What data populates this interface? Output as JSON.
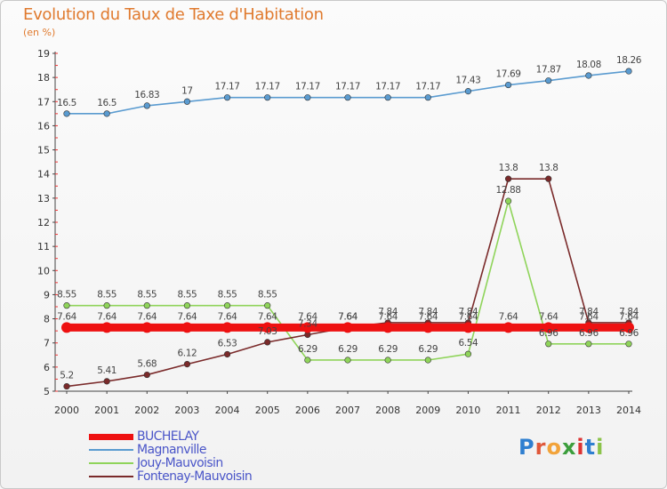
{
  "header": {
    "title": "Evolution du Taux de Taxe d'Habitation",
    "subtitle": "(en %)"
  },
  "logo": {
    "letters": [
      "P",
      "r",
      "o",
      "x",
      "i",
      "t",
      "i"
    ],
    "colors": [
      "#2f7fd0",
      "#e0583a",
      "#f2a33a",
      "#3c9e3c",
      "#d33",
      "#2f7fd0",
      "#8bc34a"
    ]
  },
  "chart_data": {
    "type": "line",
    "title": "Evolution du Taux de Taxe d'Habitation",
    "subtitle": "(en %)",
    "xlabel": "",
    "ylabel": "",
    "x": [
      "2000",
      "2001",
      "2002",
      "2003",
      "2004",
      "2005",
      "2006",
      "2007",
      "2008",
      "2009",
      "2010",
      "2011",
      "2012",
      "2013",
      "2014"
    ],
    "yticks": [
      "5",
      "6",
      "7",
      "8",
      "9",
      "10",
      "11",
      "12",
      "13",
      "14",
      "15",
      "16",
      "17",
      "18",
      "19"
    ],
    "ylim": [
      5,
      19
    ],
    "grid": false,
    "legend_position": "bottom-left",
    "series": [
      {
        "name": "BUCHELAY",
        "color": "#ee1111",
        "values": [
          7.64,
          7.64,
          7.64,
          7.64,
          7.64,
          7.64,
          7.64,
          7.64,
          7.64,
          7.64,
          7.64,
          7.64,
          7.64,
          7.64,
          7.64
        ],
        "labels": [
          "7.64",
          "7.64",
          "7.64",
          "7.64",
          "7.64",
          "7.64",
          "7.64",
          "7.64",
          "7.64",
          "7.64",
          "7.64",
          "7.64",
          "7.64",
          "7.64",
          "7.64"
        ]
      },
      {
        "name": "Magnanville",
        "color": "#5a9bd0",
        "values": [
          16.5,
          16.5,
          16.83,
          17,
          17.17,
          17.17,
          17.17,
          17.17,
          17.17,
          17.17,
          17.43,
          17.69,
          17.87,
          18.08,
          18.26
        ],
        "labels": [
          "16.5",
          "16.5",
          "16.83",
          "17",
          "17.17",
          "17.17",
          "17.17",
          "17.17",
          "17.17",
          "17.17",
          "17.43",
          "17.69",
          "17.87",
          "18.08",
          "18.26"
        ]
      },
      {
        "name": "Jouy-Mauvoisin",
        "color": "#8fd45a",
        "values": [
          8.55,
          8.55,
          8.55,
          8.55,
          8.55,
          8.55,
          6.29,
          6.29,
          6.29,
          6.29,
          6.54,
          12.88,
          6.96,
          6.96,
          6.96
        ],
        "labels": [
          "8.55",
          "8.55",
          "8.55",
          "8.55",
          "8.55",
          "8.55",
          "6.29",
          "6.29",
          "6.29",
          "6.29",
          "6.54",
          "12.88",
          "6.96",
          "6.96",
          "6.96"
        ]
      },
      {
        "name": "Fontenay-Mauvoisin",
        "color": "#7a2a2a",
        "values": [
          5.2,
          5.41,
          5.68,
          6.12,
          6.53,
          7.03,
          7.34,
          7.64,
          7.84,
          7.84,
          7.84,
          13.8,
          13.8,
          7.84,
          7.84
        ],
        "labels": [
          "5.2",
          "5.41",
          "5.68",
          "6.12",
          "6.53",
          "7.03",
          "7.34",
          "7.64",
          "7.84",
          "7.84",
          "7.84",
          "13.8",
          "13.8",
          "7.84",
          "7.84"
        ]
      }
    ]
  }
}
